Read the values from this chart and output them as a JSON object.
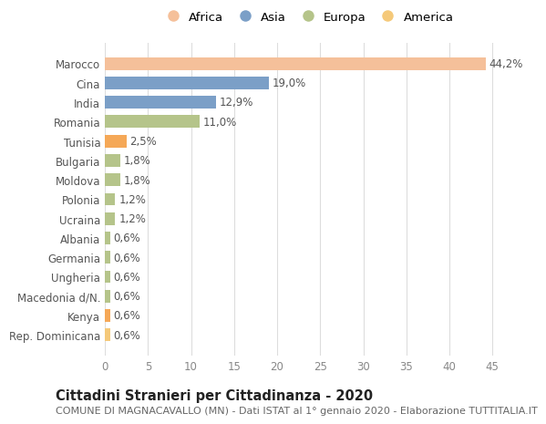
{
  "categories": [
    "Rep. Dominicana",
    "Kenya",
    "Macedonia d/N.",
    "Ungheria",
    "Germania",
    "Albania",
    "Ucraina",
    "Polonia",
    "Moldova",
    "Bulgaria",
    "Tunisia",
    "Romania",
    "India",
    "Cina",
    "Marocco"
  ],
  "values": [
    0.6,
    0.6,
    0.6,
    0.6,
    0.6,
    0.6,
    1.2,
    1.2,
    1.8,
    1.8,
    2.5,
    11.0,
    12.9,
    19.0,
    44.2
  ],
  "labels": [
    "0,6%",
    "0,6%",
    "0,6%",
    "0,6%",
    "0,6%",
    "0,6%",
    "1,2%",
    "1,2%",
    "1,8%",
    "1,8%",
    "2,5%",
    "11,0%",
    "12,9%",
    "19,0%",
    "44,2%"
  ],
  "colors": [
    "#F5C97A",
    "#F5A857",
    "#B5C48A",
    "#B5C48A",
    "#B5C48A",
    "#B5C48A",
    "#B5C48A",
    "#B5C48A",
    "#B5C48A",
    "#B5C48A",
    "#F5A857",
    "#B5C48A",
    "#7B9FC7",
    "#7B9FC7",
    "#F5C09A"
  ],
  "legend_labels": [
    "Africa",
    "Asia",
    "Europa",
    "America"
  ],
  "legend_colors": [
    "#F5C09A",
    "#7B9FC7",
    "#B5C48A",
    "#F5C97A"
  ],
  "title": "Cittadini Stranieri per Cittadinanza - 2020",
  "subtitle": "COMUNE DI MAGNACAVALLO (MN) - Dati ISTAT al 1° gennaio 2020 - Elaborazione TUTTITALIA.IT",
  "xlim": [
    0,
    47
  ],
  "xticks": [
    0,
    5,
    10,
    15,
    20,
    25,
    30,
    35,
    40,
    45
  ],
  "bg_color": "#ffffff",
  "grid_color": "#dddddd",
  "bar_height": 0.65,
  "label_fontsize": 8.5,
  "title_fontsize": 10.5,
  "subtitle_fontsize": 8,
  "tick_fontsize": 8.5,
  "legend_fontsize": 9.5
}
